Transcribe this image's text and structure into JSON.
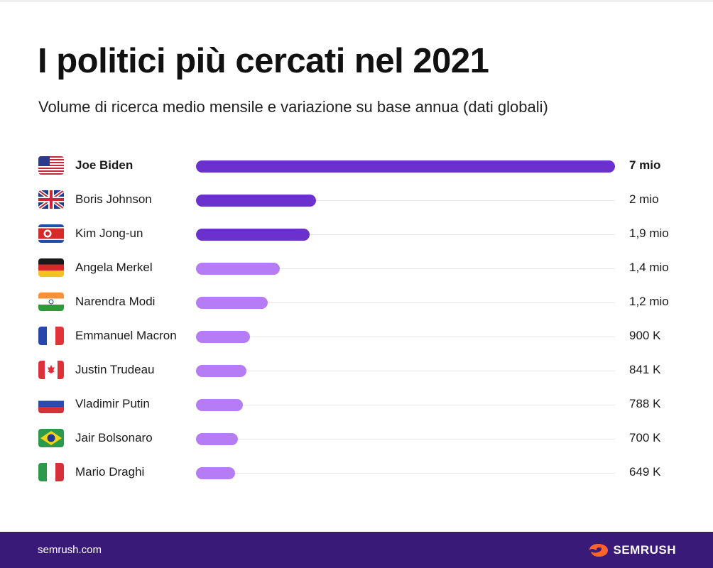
{
  "header": {
    "title": "I politici più cercati nel 2021",
    "subtitle": "Volume di ricerca medio mensile e variazione su base annua (dati globali)"
  },
  "footer": {
    "url": "semrush.com",
    "logo_text": "SEMRUSH",
    "logo_icon": "semrush-fire-icon"
  },
  "colors": {
    "bar_dark": "#6c30cc",
    "bar_light": "#b57cf6",
    "footer_bg": "#3a1a78",
    "logo_accent": "#ff642d"
  },
  "chart_data": {
    "type": "bar",
    "orientation": "horizontal",
    "unit": "monthly searches",
    "xlim": [
      0,
      7000000
    ],
    "grid": false,
    "legend": "none",
    "rows": [
      {
        "name": "Joe Biden",
        "flag": "us",
        "value": 7000000,
        "label": "7 mio",
        "bold": true,
        "color": "dark"
      },
      {
        "name": "Boris Johnson",
        "flag": "gb",
        "value": 2000000,
        "label": "2 mio",
        "bold": false,
        "color": "dark"
      },
      {
        "name": "Kim Jong-un",
        "flag": "kp",
        "value": 1900000,
        "label": "1,9 mio",
        "bold": false,
        "color": "dark"
      },
      {
        "name": "Angela Merkel",
        "flag": "de",
        "value": 1400000,
        "label": "1,4 mio",
        "bold": false,
        "color": "light"
      },
      {
        "name": "Narendra Modi",
        "flag": "in",
        "value": 1200000,
        "label": "1,2 mio",
        "bold": false,
        "color": "light"
      },
      {
        "name": "Emmanuel Macron",
        "flag": "fr",
        "value": 900000,
        "label": "900 K",
        "bold": false,
        "color": "light"
      },
      {
        "name": "Justin Trudeau",
        "flag": "ca",
        "value": 841000,
        "label": "841 K",
        "bold": false,
        "color": "light"
      },
      {
        "name": "Vladimir Putin",
        "flag": "ru",
        "value": 788000,
        "label": "788 K",
        "bold": false,
        "color": "light"
      },
      {
        "name": "Jair Bolsonaro",
        "flag": "br",
        "value": 700000,
        "label": "700 K",
        "bold": false,
        "color": "light"
      },
      {
        "name": "Mario Draghi",
        "flag": "it",
        "value": 649000,
        "label": "649 K",
        "bold": false,
        "color": "light"
      }
    ]
  }
}
